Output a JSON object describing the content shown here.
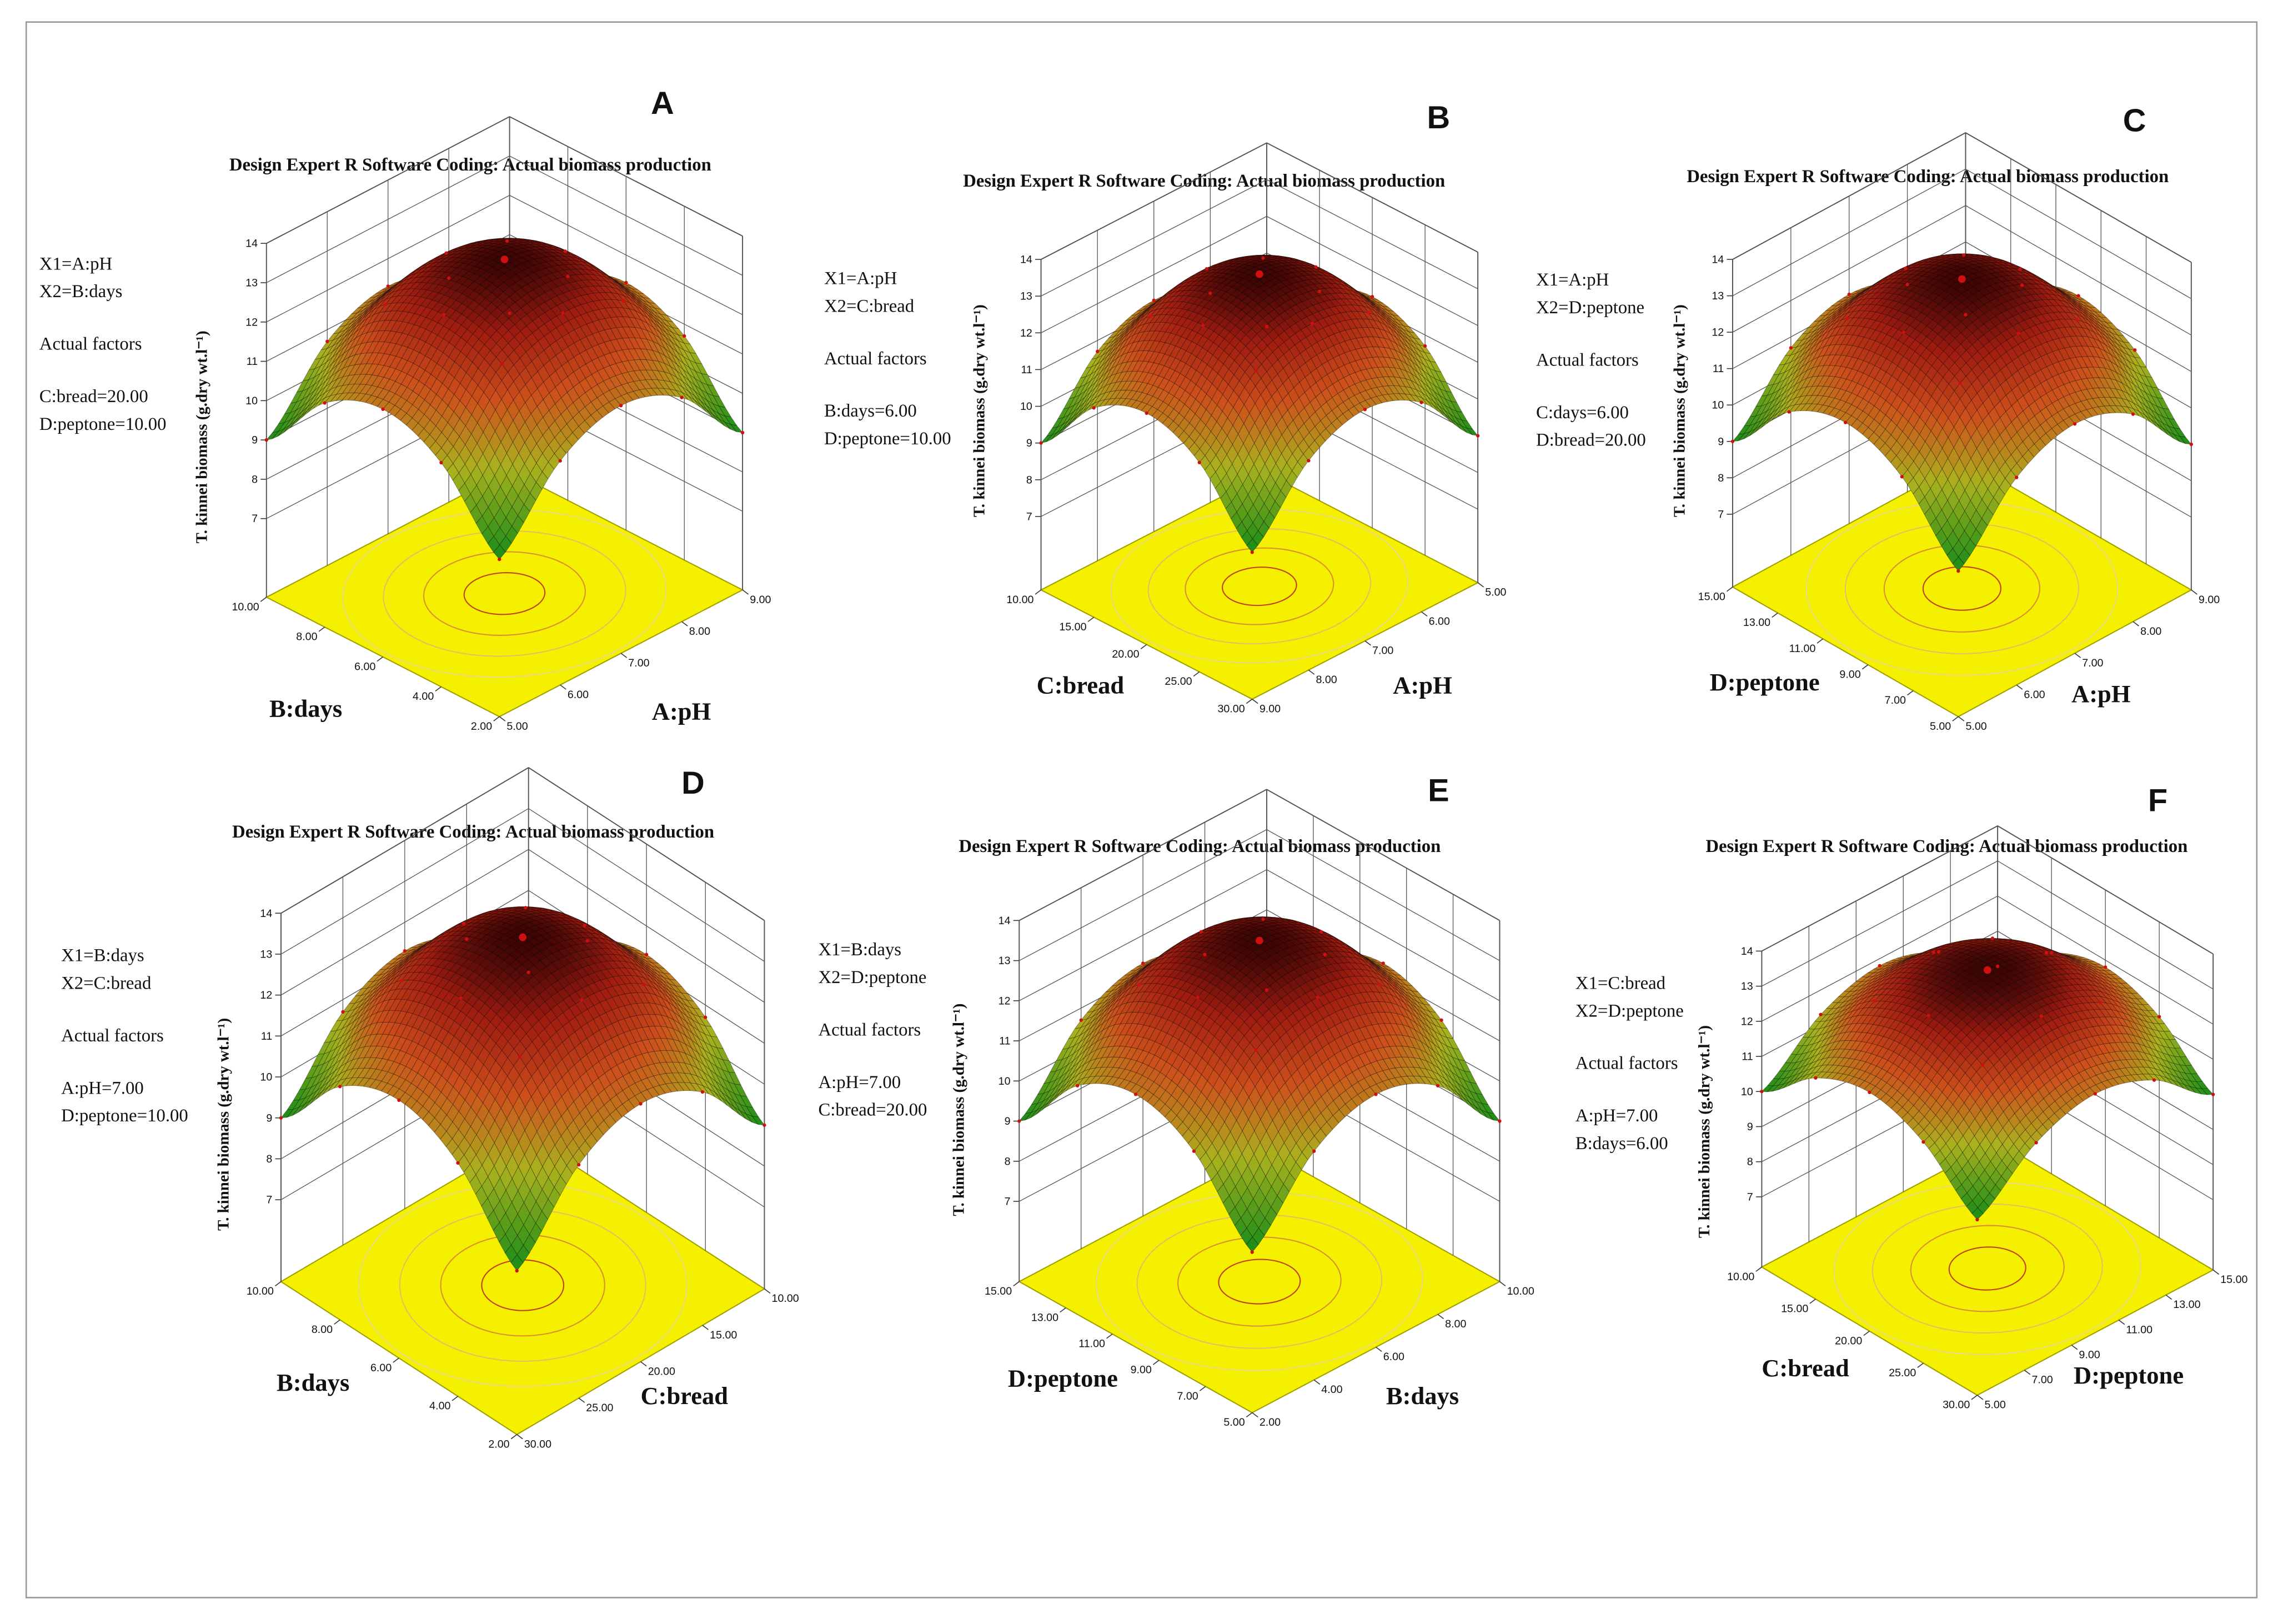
{
  "chart_data": [
    {
      "type": "surface",
      "panel": "A",
      "title": "Design Expert R Software Coding: Actual biomass production",
      "annotations": [
        "X1=A:pH",
        "X2=B:days",
        "Actual factors",
        "C:bread=20.00",
        "D:peptone=10.00"
      ],
      "xlabel": "A:pH",
      "ylabel": "B:days",
      "zlabel": "T. kinnei biomass (g.dry wt.l⁻¹)",
      "xlim": [
        5,
        9
      ],
      "xticks": [
        {
          "value": 5,
          "label": "5.00"
        },
        {
          "value": 6,
          "label": "6.00"
        },
        {
          "value": 7,
          "label": "7.00"
        },
        {
          "value": 8,
          "label": "8.00"
        },
        {
          "value": 9,
          "label": "9.00"
        }
      ],
      "ylim": [
        2,
        10
      ],
      "yticks": [
        {
          "value": 2,
          "label": "2.00"
        },
        {
          "value": 4,
          "label": "4.00"
        },
        {
          "value": 6,
          "label": "6.00"
        },
        {
          "value": 8,
          "label": "8.00"
        },
        {
          "value": 10,
          "label": "10.00"
        }
      ],
      "zlim": [
        5,
        14
      ],
      "zticks": [
        7,
        8,
        9,
        10,
        11,
        12,
        13,
        14
      ],
      "x_reversed": false,
      "y_reversed": false,
      "surface_x": [
        5,
        6,
        7,
        8,
        9
      ],
      "surface_y": [
        2,
        4,
        6,
        8,
        10
      ],
      "values": [
        [
          9,
          10.7,
          11.3,
          10.7,
          9
        ],
        [
          10.7,
          12.4,
          12.9,
          12.4,
          10.7
        ],
        [
          11.3,
          12.9,
          13.5,
          12.9,
          11.3
        ],
        [
          10.7,
          12.4,
          12.9,
          12.4,
          10.7
        ],
        [
          9,
          10.7,
          11.3,
          10.7,
          9
        ]
      ]
    },
    {
      "type": "surface",
      "panel": "B",
      "title": "Design Expert R Software Coding: Actual biomass production",
      "annotations": [
        "X1=A:pH",
        "X2=C:bread",
        "Actual factors",
        "B:days=6.00",
        "D:peptone=10.00"
      ],
      "xlabel": "A:pH",
      "ylabel": "C:bread",
      "zlabel": "T. kinnei biomass (g.dry wt.l⁻¹)",
      "xlim": [
        5,
        9
      ],
      "xticks": [
        {
          "value": 5,
          "label": "5.00"
        },
        {
          "value": 6,
          "label": "6.00"
        },
        {
          "value": 7,
          "label": "7.00"
        },
        {
          "value": 8,
          "label": "8.00"
        },
        {
          "value": 9,
          "label": "9.00"
        }
      ],
      "ylim": [
        10,
        30
      ],
      "yticks": [
        {
          "value": 10,
          "label": "10.00"
        },
        {
          "value": 15,
          "label": "15.00"
        },
        {
          "value": 20,
          "label": "20.00"
        },
        {
          "value": 25,
          "label": "25.00"
        },
        {
          "value": 30,
          "label": "30.00"
        }
      ],
      "zlim": [
        5,
        14
      ],
      "zticks": [
        7,
        8,
        9,
        10,
        11,
        12,
        13,
        14
      ],
      "x_reversed": true,
      "y_reversed": true,
      "surface_x": [
        5,
        6,
        7,
        8,
        9
      ],
      "surface_y": [
        10,
        15,
        20,
        25,
        30
      ],
      "values": [
        [
          9,
          10.7,
          11.3,
          10.7,
          9
        ],
        [
          10.7,
          12.4,
          12.9,
          12.4,
          10.7
        ],
        [
          11.3,
          12.9,
          13.5,
          12.9,
          11.3
        ],
        [
          10.7,
          12.4,
          12.9,
          12.4,
          10.7
        ],
        [
          9,
          10.7,
          11.3,
          10.7,
          9
        ]
      ]
    },
    {
      "type": "surface",
      "panel": "C",
      "title": "Design Expert R Software Coding: Actual biomass production",
      "annotations": [
        "X1=A:pH",
        "X2=D:peptone",
        "Actual factors",
        "C:days=6.00",
        "D:bread=20.00"
      ],
      "xlabel": "A:pH",
      "ylabel": "D:peptone",
      "zlabel": "T. kinnei biomass (g.dry wt.l⁻¹)",
      "xlim": [
        5,
        9
      ],
      "xticks": [
        {
          "value": 5,
          "label": "5.00"
        },
        {
          "value": 6,
          "label": "6.00"
        },
        {
          "value": 7,
          "label": "7.00"
        },
        {
          "value": 8,
          "label": "8.00"
        },
        {
          "value": 9,
          "label": "9.00"
        }
      ],
      "ylim": [
        5,
        15
      ],
      "yticks": [
        {
          "value": 5,
          "label": "5.00"
        },
        {
          "value": 7,
          "label": "7.00"
        },
        {
          "value": 9,
          "label": "9.00"
        },
        {
          "value": 11,
          "label": "11.00"
        },
        {
          "value": 13,
          "label": "13.00"
        },
        {
          "value": 15,
          "label": "15.00"
        }
      ],
      "zlim": [
        5,
        14
      ],
      "zticks": [
        7,
        8,
        9,
        10,
        11,
        12,
        13,
        14
      ],
      "x_reversed": false,
      "y_reversed": false,
      "surface_x": [
        5,
        6,
        7,
        8,
        9
      ],
      "surface_y": [
        5,
        7.5,
        10,
        12.5,
        15
      ],
      "values": [
        [
          9,
          10.7,
          11.3,
          10.7,
          9
        ],
        [
          10.7,
          12.4,
          12.9,
          12.4,
          10.7
        ],
        [
          11.3,
          12.9,
          13.5,
          12.9,
          11.3
        ],
        [
          10.7,
          12.4,
          12.9,
          12.4,
          10.7
        ],
        [
          9,
          10.7,
          11.3,
          10.7,
          9
        ]
      ]
    },
    {
      "type": "surface",
      "panel": "D",
      "title": "Design Expert R Software Coding: Actual biomass production",
      "annotations": [
        "X1=B:days",
        "X2=C:bread",
        "Actual factors",
        "A:pH=7.00",
        "D:peptone=10.00"
      ],
      "xlabel": "C:bread",
      "ylabel": "B:days",
      "zlabel": "T. kinnei biomass (g.dry wt.l⁻¹)",
      "xlim": [
        10,
        30
      ],
      "xticks": [
        {
          "value": 10,
          "label": "10.00"
        },
        {
          "value": 15,
          "label": "15.00"
        },
        {
          "value": 20,
          "label": "20.00"
        },
        {
          "value": 25,
          "label": "25.00"
        },
        {
          "value": 30,
          "label": "30.00"
        }
      ],
      "ylim": [
        2,
        10
      ],
      "yticks": [
        {
          "value": 2,
          "label": "2.00"
        },
        {
          "value": 4,
          "label": "4.00"
        },
        {
          "value": 6,
          "label": "6.00"
        },
        {
          "value": 8,
          "label": "8.00"
        },
        {
          "value": 10,
          "label": "10.00"
        }
      ],
      "zlim": [
        5,
        14
      ],
      "zticks": [
        7,
        8,
        9,
        10,
        11,
        12,
        13,
        14
      ],
      "x_reversed": true,
      "y_reversed": false,
      "surface_x": [
        10,
        15,
        20,
        25,
        30
      ],
      "surface_y": [
        2,
        4,
        6,
        8,
        10
      ],
      "values": [
        [
          9,
          10.7,
          11.3,
          10.7,
          9
        ],
        [
          10.7,
          12.4,
          12.9,
          12.4,
          10.7
        ],
        [
          11.3,
          12.9,
          13.5,
          12.9,
          11.3
        ],
        [
          10.7,
          12.4,
          12.9,
          12.4,
          10.7
        ],
        [
          9,
          10.7,
          11.3,
          10.7,
          9
        ]
      ]
    },
    {
      "type": "surface",
      "panel": "E",
      "title": "Design Expert R Software Coding: Actual biomass production",
      "annotations": [
        "X1=B:days",
        "X2=D:peptone",
        "Actual factors",
        "A:pH=7.00",
        "C:bread=20.00"
      ],
      "xlabel": "B:days",
      "ylabel": "D:peptone",
      "zlabel": "T. kinnei biomass (g.dry wt.l⁻¹)",
      "xlim": [
        2,
        10
      ],
      "xticks": [
        {
          "value": 2,
          "label": "2.00"
        },
        {
          "value": 4,
          "label": "4.00"
        },
        {
          "value": 6,
          "label": "6.00"
        },
        {
          "value": 8,
          "label": "8.00"
        },
        {
          "value": 10,
          "label": "10.00"
        }
      ],
      "ylim": [
        5,
        15
      ],
      "yticks": [
        {
          "value": 5,
          "label": "5.00"
        },
        {
          "value": 7,
          "label": "7.00"
        },
        {
          "value": 9,
          "label": "9.00"
        },
        {
          "value": 11,
          "label": "11.00"
        },
        {
          "value": 13,
          "label": "13.00"
        },
        {
          "value": 15,
          "label": "15.00"
        }
      ],
      "zlim": [
        5,
        14
      ],
      "zticks": [
        7,
        8,
        9,
        10,
        11,
        12,
        13,
        14
      ],
      "x_reversed": false,
      "y_reversed": false,
      "surface_x": [
        2,
        4,
        6,
        8,
        10
      ],
      "surface_y": [
        5,
        7.5,
        10,
        12.5,
        15
      ],
      "values": [
        [
          9,
          10.7,
          11.3,
          10.7,
          9
        ],
        [
          10.7,
          12.4,
          12.9,
          12.4,
          10.7
        ],
        [
          11.3,
          12.9,
          13.5,
          12.9,
          11.3
        ],
        [
          10.7,
          12.4,
          12.9,
          12.4,
          10.7
        ],
        [
          9,
          10.7,
          11.3,
          10.7,
          9
        ]
      ]
    },
    {
      "type": "surface",
      "panel": "F",
      "title": "Design Expert R Software Coding: Actual biomass production",
      "annotations": [
        "X1=C:bread",
        "X2=D:peptone",
        "Actual factors",
        "A:pH=7.00",
        "B:days=6.00"
      ],
      "xlabel": "D:peptone",
      "ylabel": "C:bread",
      "zlabel": "T. kinnei biomass (g.dry wt.l⁻¹)",
      "xlim": [
        5,
        15
      ],
      "xticks": [
        {
          "value": 5,
          "label": "5.00"
        },
        {
          "value": 7,
          "label": "7.00"
        },
        {
          "value": 9,
          "label": "9.00"
        },
        {
          "value": 11,
          "label": "11.00"
        },
        {
          "value": 13,
          "label": "13.00"
        },
        {
          "value": 15,
          "label": "15.00"
        }
      ],
      "ylim": [
        10,
        30
      ],
      "yticks": [
        {
          "value": 10,
          "label": "10.00"
        },
        {
          "value": 15,
          "label": "15.00"
        },
        {
          "value": 20,
          "label": "20.00"
        },
        {
          "value": 25,
          "label": "25.00"
        },
        {
          "value": 30,
          "label": "30.00"
        }
      ],
      "zlim": [
        5,
        14
      ],
      "zticks": [
        7,
        8,
        9,
        10,
        11,
        12,
        13,
        14
      ],
      "x_reversed": false,
      "y_reversed": true,
      "surface_x": [
        5,
        7.5,
        10,
        12.5,
        15
      ],
      "surface_y": [
        10,
        15,
        20,
        25,
        30
      ],
      "values": [
        [
          10,
          11.3,
          11.8,
          11.3,
          10
        ],
        [
          11.3,
          12.6,
          13.1,
          12.6,
          11.3
        ],
        [
          11.8,
          13.1,
          13.5,
          13.1,
          11.8
        ],
        [
          11.3,
          12.6,
          13.1,
          12.6,
          11.3
        ],
        [
          10,
          11.3,
          11.8,
          11.3,
          10
        ]
      ]
    }
  ]
}
